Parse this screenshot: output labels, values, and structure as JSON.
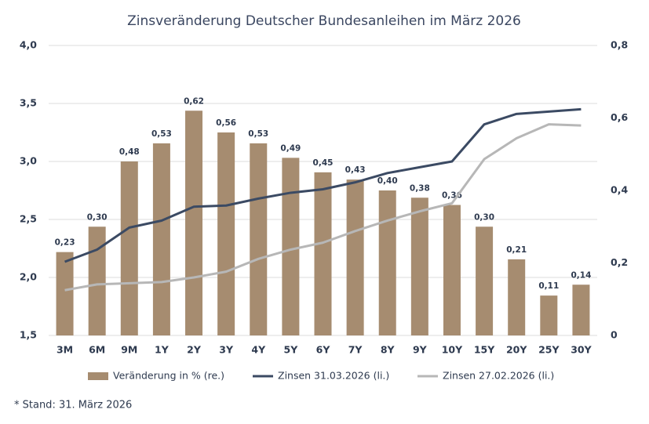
{
  "chart_data": {
    "type": "bar-line",
    "title": "Zinsveränderung Deutscher Bundesanleihen im März 2026",
    "categories": [
      "3M",
      "6M",
      "9M",
      "1Y",
      "2Y",
      "3Y",
      "4Y",
      "5Y",
      "6Y",
      "7Y",
      "8Y",
      "9Y",
      "10Y",
      "15Y",
      "20Y",
      "25Y",
      "30Y"
    ],
    "series": [
      {
        "name": "Veränderung in % (re.)",
        "kind": "bar",
        "axis": "y2",
        "color": "#a68c70",
        "values": [
          0.23,
          0.3,
          0.48,
          0.53,
          0.62,
          0.56,
          0.53,
          0.49,
          0.45,
          0.43,
          0.4,
          0.38,
          0.36,
          0.3,
          0.21,
          0.11,
          0.14
        ],
        "value_labels": [
          "0,23",
          "0,30",
          "0,48",
          "0,53",
          "0,62",
          "0,56",
          "0,53",
          "0,49",
          "0,45",
          "0,43",
          "0,40",
          "0,38",
          "0,36",
          "0,30",
          "0,21",
          "0,11",
          "0,14"
        ]
      },
      {
        "name": "Zinsen 31.03.2026 (li.)",
        "kind": "line",
        "axis": "y",
        "color": "#3b4a63",
        "values": [
          2.135,
          2.24,
          2.43,
          2.49,
          2.61,
          2.62,
          2.68,
          2.73,
          2.76,
          2.82,
          2.9,
          2.95,
          3.0,
          3.32,
          3.41,
          3.43,
          3.45
        ]
      },
      {
        "name": "Zinsen 27.02.2026 (li.)",
        "kind": "line",
        "axis": "y",
        "color": "#b7b7b7",
        "values": [
          1.89,
          1.94,
          1.95,
          1.96,
          2.0,
          2.05,
          2.16,
          2.24,
          2.3,
          2.4,
          2.49,
          2.57,
          2.64,
          3.02,
          3.2,
          3.32,
          3.31
        ]
      }
    ],
    "ylim": [
      1.5,
      4.0
    ],
    "yticks": [
      {
        "value": 1.5,
        "label": "1,5"
      },
      {
        "value": 2.0,
        "label": "2,0"
      },
      {
        "value": 2.5,
        "label": "2,5"
      },
      {
        "value": 3.0,
        "label": "3,0"
      },
      {
        "value": 3.5,
        "label": "3,5"
      },
      {
        "value": 4.0,
        "label": "4,0"
      }
    ],
    "y2lim": [
      0,
      0.8
    ],
    "y2ticks": [
      0,
      {
        "value": 0.2,
        "label": "0,2"
      },
      {
        "value": 0.4,
        "label": "0,4"
      },
      {
        "value": 0.6,
        "label": "0,6"
      },
      {
        "value": 0.8,
        "label": "0,8"
      }
    ],
    "grid": true,
    "note": "* Stand: 31. März 2026"
  }
}
